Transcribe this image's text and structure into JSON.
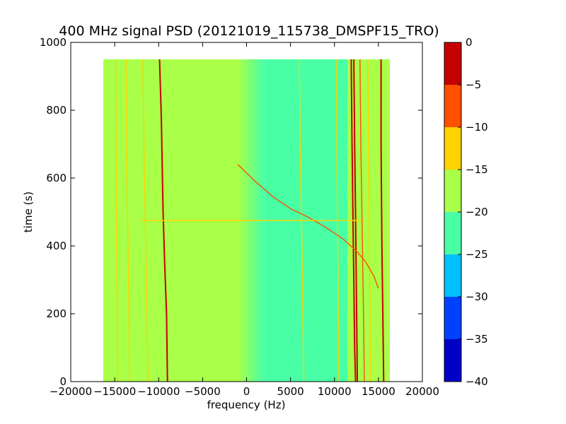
{
  "chart_data": {
    "type": "heatmap",
    "title": "400 MHz signal PSD (20121019_115738_DMSPF15_TRO)",
    "xlabel": "frequency (Hz)",
    "ylabel": "time (s)",
    "xlim": [
      -20000,
      20000
    ],
    "ylim": [
      0,
      1000
    ],
    "x_ticks": [
      -20000,
      -15000,
      -10000,
      -5000,
      0,
      5000,
      10000,
      15000,
      20000
    ],
    "y_ticks": [
      0,
      200,
      400,
      600,
      800,
      1000
    ],
    "data_extent": {
      "x": [
        -16300,
        16300
      ],
      "y": [
        0,
        950
      ]
    },
    "grid": false,
    "colorbar": {
      "levels": [
        0,
        -5,
        -10,
        -15,
        -20,
        -25,
        -30,
        -35,
        -40
      ],
      "bands": [
        {
          "from": -40,
          "to": -35,
          "color": "#0000c8"
        },
        {
          "from": -35,
          "to": -30,
          "color": "#0040ff"
        },
        {
          "from": -30,
          "to": -25,
          "color": "#00c0ff"
        },
        {
          "from": -25,
          "to": -20,
          "color": "#48ffa6"
        },
        {
          "from": -20,
          "to": -15,
          "color": "#aaff48"
        },
        {
          "from": -15,
          "to": -10,
          "color": "#ffd200"
        },
        {
          "from": -10,
          "to": -5,
          "color": "#ff5000"
        },
        {
          "from": -5,
          "to": 0,
          "color": "#c40000"
        }
      ]
    },
    "regions": [
      {
        "x": [
          -16300,
          -1000
        ],
        "level": -17.5
      },
      {
        "x": [
          2000,
          11500
        ],
        "level": -22.5
      },
      {
        "x": [
          11500,
          16300
        ],
        "level": -17.5
      }
    ],
    "lines": [
      {
        "level": -2.5,
        "points": [
          [
            -9900,
            950
          ],
          [
            -9700,
            780
          ],
          [
            -9500,
            500
          ],
          [
            -9300,
            340
          ],
          [
            -9100,
            200
          ],
          [
            -9000,
            0
          ]
        ]
      },
      {
        "level": -12.5,
        "points": [
          [
            -11800,
            950
          ],
          [
            -11650,
            650
          ],
          [
            -11400,
            300
          ],
          [
            -11200,
            0
          ]
        ]
      },
      {
        "level": -12.5,
        "points": [
          [
            -13700,
            950
          ],
          [
            -13600,
            600
          ],
          [
            -13400,
            250
          ],
          [
            -13300,
            0
          ]
        ]
      },
      {
        "level": -12.5,
        "points": [
          [
            -14900,
            950
          ],
          [
            -14800,
            500
          ],
          [
            -14650,
            0
          ]
        ]
      },
      {
        "level": -12.5,
        "points": [
          [
            6000,
            950
          ],
          [
            6100,
            700
          ],
          [
            6300,
            400
          ],
          [
            6500,
            0
          ]
        ]
      },
      {
        "level": -12.5,
        "points": [
          [
            10200,
            950
          ],
          [
            10300,
            600
          ],
          [
            10500,
            0
          ]
        ]
      },
      {
        "level": -2.5,
        "points": [
          [
            11900,
            950
          ],
          [
            12000,
            700
          ],
          [
            12100,
            500
          ],
          [
            12200,
            300
          ],
          [
            12300,
            100
          ],
          [
            12400,
            0
          ]
        ]
      },
      {
        "level": -2.5,
        "points": [
          [
            12200,
            950
          ],
          [
            12300,
            700
          ],
          [
            12400,
            480
          ],
          [
            12500,
            250
          ],
          [
            12600,
            0
          ]
        ]
      },
      {
        "level": -7.5,
        "points": [
          [
            12900,
            950
          ],
          [
            13000,
            700
          ],
          [
            13150,
            450
          ],
          [
            13300,
            200
          ],
          [
            13400,
            0
          ]
        ]
      },
      {
        "level": -12.5,
        "points": [
          [
            13800,
            950
          ],
          [
            13900,
            600
          ],
          [
            14000,
            300
          ],
          [
            14100,
            0
          ]
        ]
      },
      {
        "level": -2.5,
        "points": [
          [
            15300,
            950
          ],
          [
            15300,
            700
          ],
          [
            15400,
            400
          ],
          [
            15500,
            200
          ],
          [
            15600,
            0
          ]
        ]
      },
      {
        "level": -7.5,
        "points": [
          [
            -1000,
            640
          ],
          [
            1000,
            590
          ],
          [
            3000,
            545
          ],
          [
            5000,
            510
          ],
          [
            7000,
            485
          ],
          [
            9000,
            455
          ],
          [
            11000,
            420
          ],
          [
            12500,
            385
          ],
          [
            13500,
            355
          ],
          [
            14500,
            310
          ],
          [
            15000,
            275
          ]
        ]
      },
      {
        "level": -12.5,
        "points": [
          [
            -12000,
            475
          ],
          [
            13000,
            475
          ]
        ]
      }
    ]
  }
}
